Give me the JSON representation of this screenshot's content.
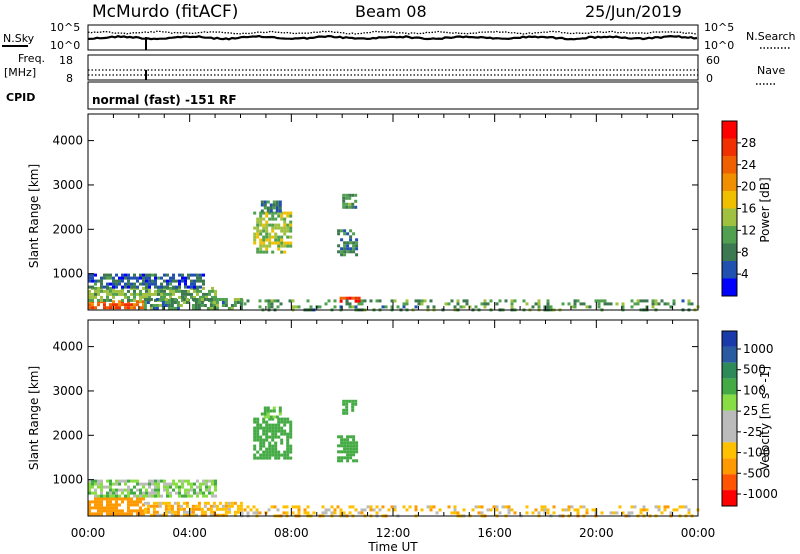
{
  "header": {
    "station": "McMurdo (fitACF)",
    "beam": "Beam 08",
    "date": "25/Jun/2019"
  },
  "strips": {
    "nsky_label": "N.Sky",
    "nsearch_label": "N.Search",
    "noise_top": "10^5",
    "noise_bottom": "10^0",
    "freq_label_1": "Freq.",
    "freq_label_2": "[MHz]",
    "freq_top": "18",
    "freq_bottom": "8",
    "nave_label": "Nave",
    "nave_top": "60",
    "nave_bottom": "0",
    "cpid_label": "CPID",
    "cpid_value": "normal (fast) -151 RF"
  },
  "colors": {
    "power": [
      "#0000ff",
      "#2050b0",
      "#3c7850",
      "#50a050",
      "#a0c040",
      "#f0c000",
      "#f09000",
      "#f06000",
      "#f03000",
      "#ff0000"
    ],
    "velocity": [
      "#ff0000",
      "#ff5500",
      "#ff9900",
      "#ffc000",
      "#bbbbbb",
      "#bbbbbb",
      "#88dd44",
      "#44aa44",
      "#2e8b57",
      "#2a5aa0",
      "#1a3aaa"
    ]
  },
  "chart_data": [
    {
      "type": "heatmap",
      "title": "Power",
      "xlabel": "Time UT",
      "ylabel": "Slant Range [km]",
      "x_ticks": [
        "00:00",
        "04:00",
        "08:00",
        "12:00",
        "16:00",
        "20:00",
        "00:00"
      ],
      "xlim_hours": [
        0,
        24
      ],
      "ylim": [
        180,
        4600
      ],
      "y_ticks": [
        1000,
        2000,
        3000,
        4000
      ],
      "colorbar": {
        "label": "Power [dB]",
        "ticks": [
          4,
          8,
          12,
          16,
          20,
          24,
          28
        ],
        "range": [
          0,
          32
        ]
      },
      "regions": [
        {
          "t0": 0.0,
          "t1": 2.2,
          "r0": 200,
          "r1": 400,
          "value": 24
        },
        {
          "t0": 0.0,
          "t1": 5.0,
          "r0": 400,
          "r1": 700,
          "value": 12
        },
        {
          "t0": 0.0,
          "t1": 4.5,
          "r0": 700,
          "r1": 1000,
          "value": 6
        },
        {
          "t0": 2.2,
          "t1": 6.0,
          "r0": 200,
          "r1": 450,
          "value": 10
        },
        {
          "t0": 6.5,
          "t1": 8.0,
          "r0": 1500,
          "r1": 2400,
          "value": 14
        },
        {
          "t0": 6.8,
          "t1": 7.6,
          "r0": 2400,
          "r1": 2650,
          "value": 8
        },
        {
          "t0": 9.8,
          "t1": 10.6,
          "r0": 1400,
          "r1": 2000,
          "value": 8
        },
        {
          "t0": 10.0,
          "t1": 10.5,
          "r0": 2500,
          "r1": 2800,
          "value": 10
        },
        {
          "t0": 9.9,
          "t1": 10.7,
          "r0": 350,
          "r1": 480,
          "value": 28
        },
        {
          "t0": 6.0,
          "t1": 24.0,
          "r0": 180,
          "r1": 420,
          "value": 10
        }
      ]
    },
    {
      "type": "heatmap",
      "title": "Velocity",
      "xlabel": "Time UT",
      "ylabel": "Slant Range [km]",
      "x_ticks": [
        "00:00",
        "04:00",
        "08:00",
        "12:00",
        "16:00",
        "20:00",
        "00:00"
      ],
      "xlim_hours": [
        0,
        24
      ],
      "ylim": [
        180,
        4600
      ],
      "y_ticks": [
        1000,
        2000,
        3000,
        4000
      ],
      "colorbar": {
        "label": "Velocity [m s^-1]",
        "ticks": [
          "1000",
          "500",
          "100",
          "25",
          "-25",
          "-100",
          "-500",
          "-1000"
        ]
      },
      "regions": [
        {
          "t0": 0.0,
          "t1": 2.2,
          "r0": 200,
          "r1": 600,
          "value": -300
        },
        {
          "t0": 0.0,
          "t1": 5.0,
          "r0": 600,
          "r1": 1000,
          "value": 60
        },
        {
          "t0": 2.2,
          "t1": 6.0,
          "r0": 200,
          "r1": 500,
          "value": -80
        },
        {
          "t0": 6.5,
          "t1": 8.0,
          "r0": 1500,
          "r1": 2400,
          "value": 200
        },
        {
          "t0": 6.8,
          "t1": 7.6,
          "r0": 2400,
          "r1": 2650,
          "value": 150
        },
        {
          "t0": 9.8,
          "t1": 10.6,
          "r0": 1400,
          "r1": 2000,
          "value": 300
        },
        {
          "t0": 10.0,
          "t1": 10.5,
          "r0": 2500,
          "r1": 2800,
          "value": 150
        },
        {
          "t0": 6.0,
          "t1": 24.0,
          "r0": 180,
          "r1": 420,
          "value": -60
        }
      ]
    }
  ]
}
